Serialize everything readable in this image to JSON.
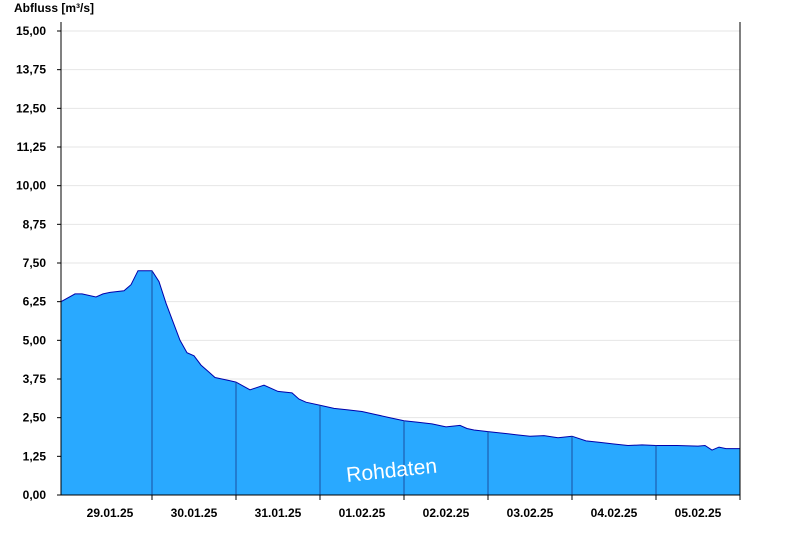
{
  "chart_data": {
    "type": "area",
    "ylabel": "Abfluss [m³/s]",
    "watermark": "Rohdaten",
    "ylim": [
      0,
      15
    ],
    "y_ticks": [
      "0,00",
      "1,25",
      "2,50",
      "3,75",
      "5,00",
      "6,25",
      "7,50",
      "8,75",
      "10,00",
      "11,25",
      "12,50",
      "13,75",
      "15,00"
    ],
    "y_tick_values": [
      0,
      1.25,
      2.5,
      3.75,
      5,
      6.25,
      7.5,
      8.75,
      10,
      11.25,
      12.5,
      13.75,
      15
    ],
    "x_start": "2025-01-28T22:00",
    "x_end": "2025-02-06T00:00",
    "day_boundaries": [
      "2025-01-30T00:00",
      "2025-01-31T00:00",
      "2025-02-01T00:00",
      "2025-02-02T00:00",
      "2025-02-03T00:00",
      "2025-02-04T00:00",
      "2025-02-05T00:00",
      "2025-02-06T00:00"
    ],
    "x_tick_labels": [
      "29.01.25",
      "30.01.25",
      "31.01.25",
      "01.02.25",
      "02.02.25",
      "03.02.25",
      "04.02.25",
      "05.02.25"
    ],
    "x_tick_positions": [
      "2025-01-29T12:00",
      "2025-01-30T12:00",
      "2025-01-31T12:00",
      "2025-02-01T12:00",
      "2025-02-02T12:00",
      "2025-02-03T12:00",
      "2025-02-04T12:00",
      "2025-02-05T12:00"
    ],
    "fill_color": "#29a9ff",
    "line_color": "#0000aa",
    "grid": true,
    "series": [
      {
        "x": [
          "2025-01-28T22:00",
          "2025-01-29T02:00",
          "2025-01-29T04:00",
          "2025-01-29T08:00",
          "2025-01-29T10:00",
          "2025-01-29T12:00",
          "2025-01-29T16:00",
          "2025-01-29T18:00",
          "2025-01-29T20:00",
          "2025-01-30T00:00",
          "2025-01-30T02:00",
          "2025-01-30T04:00",
          "2025-01-30T06:00",
          "2025-01-30T08:00",
          "2025-01-30T10:00",
          "2025-01-30T12:00",
          "2025-01-30T14:00",
          "2025-01-30T16:00",
          "2025-01-30T18:00",
          "2025-01-30T20:00",
          "2025-01-30T22:00",
          "2025-01-31T00:00",
          "2025-01-31T04:00",
          "2025-01-31T08:00",
          "2025-01-31T12:00",
          "2025-01-31T16:00",
          "2025-01-31T18:00",
          "2025-01-31T20:00",
          "2025-02-01T00:00",
          "2025-02-01T04:00",
          "2025-02-01T08:00",
          "2025-02-01T12:00",
          "2025-02-01T16:00",
          "2025-02-01T20:00",
          "2025-02-02T00:00",
          "2025-02-02T04:00",
          "2025-02-02T08:00",
          "2025-02-02T12:00",
          "2025-02-02T16:00",
          "2025-02-02T18:00",
          "2025-02-02T20:00",
          "2025-02-03T00:00",
          "2025-02-03T04:00",
          "2025-02-03T08:00",
          "2025-02-03T12:00",
          "2025-02-03T16:00",
          "2025-02-03T20:00",
          "2025-02-04T00:00",
          "2025-02-04T04:00",
          "2025-02-04T08:00",
          "2025-02-04T12:00",
          "2025-02-04T16:00",
          "2025-02-04T20:00",
          "2025-02-05T00:00",
          "2025-02-05T06:00",
          "2025-02-05T12:00",
          "2025-02-05T14:00",
          "2025-02-05T16:00",
          "2025-02-05T18:00",
          "2025-02-05T20:00",
          "2025-02-06T00:00"
        ],
        "y": [
          6.25,
          6.5,
          6.5,
          6.4,
          6.5,
          6.55,
          6.6,
          6.8,
          7.25,
          7.25,
          6.9,
          6.2,
          5.6,
          5.0,
          4.6,
          4.5,
          4.2,
          4.0,
          3.8,
          3.75,
          3.7,
          3.65,
          3.4,
          3.55,
          3.35,
          3.3,
          3.1,
          3.0,
          2.9,
          2.8,
          2.75,
          2.7,
          2.6,
          2.5,
          2.4,
          2.35,
          2.3,
          2.2,
          2.25,
          2.15,
          2.1,
          2.05,
          2.0,
          1.95,
          1.9,
          1.92,
          1.85,
          1.9,
          1.75,
          1.7,
          1.65,
          1.6,
          1.62,
          1.6,
          1.6,
          1.58,
          1.6,
          1.45,
          1.55,
          1.5,
          1.5
        ]
      }
    ]
  }
}
